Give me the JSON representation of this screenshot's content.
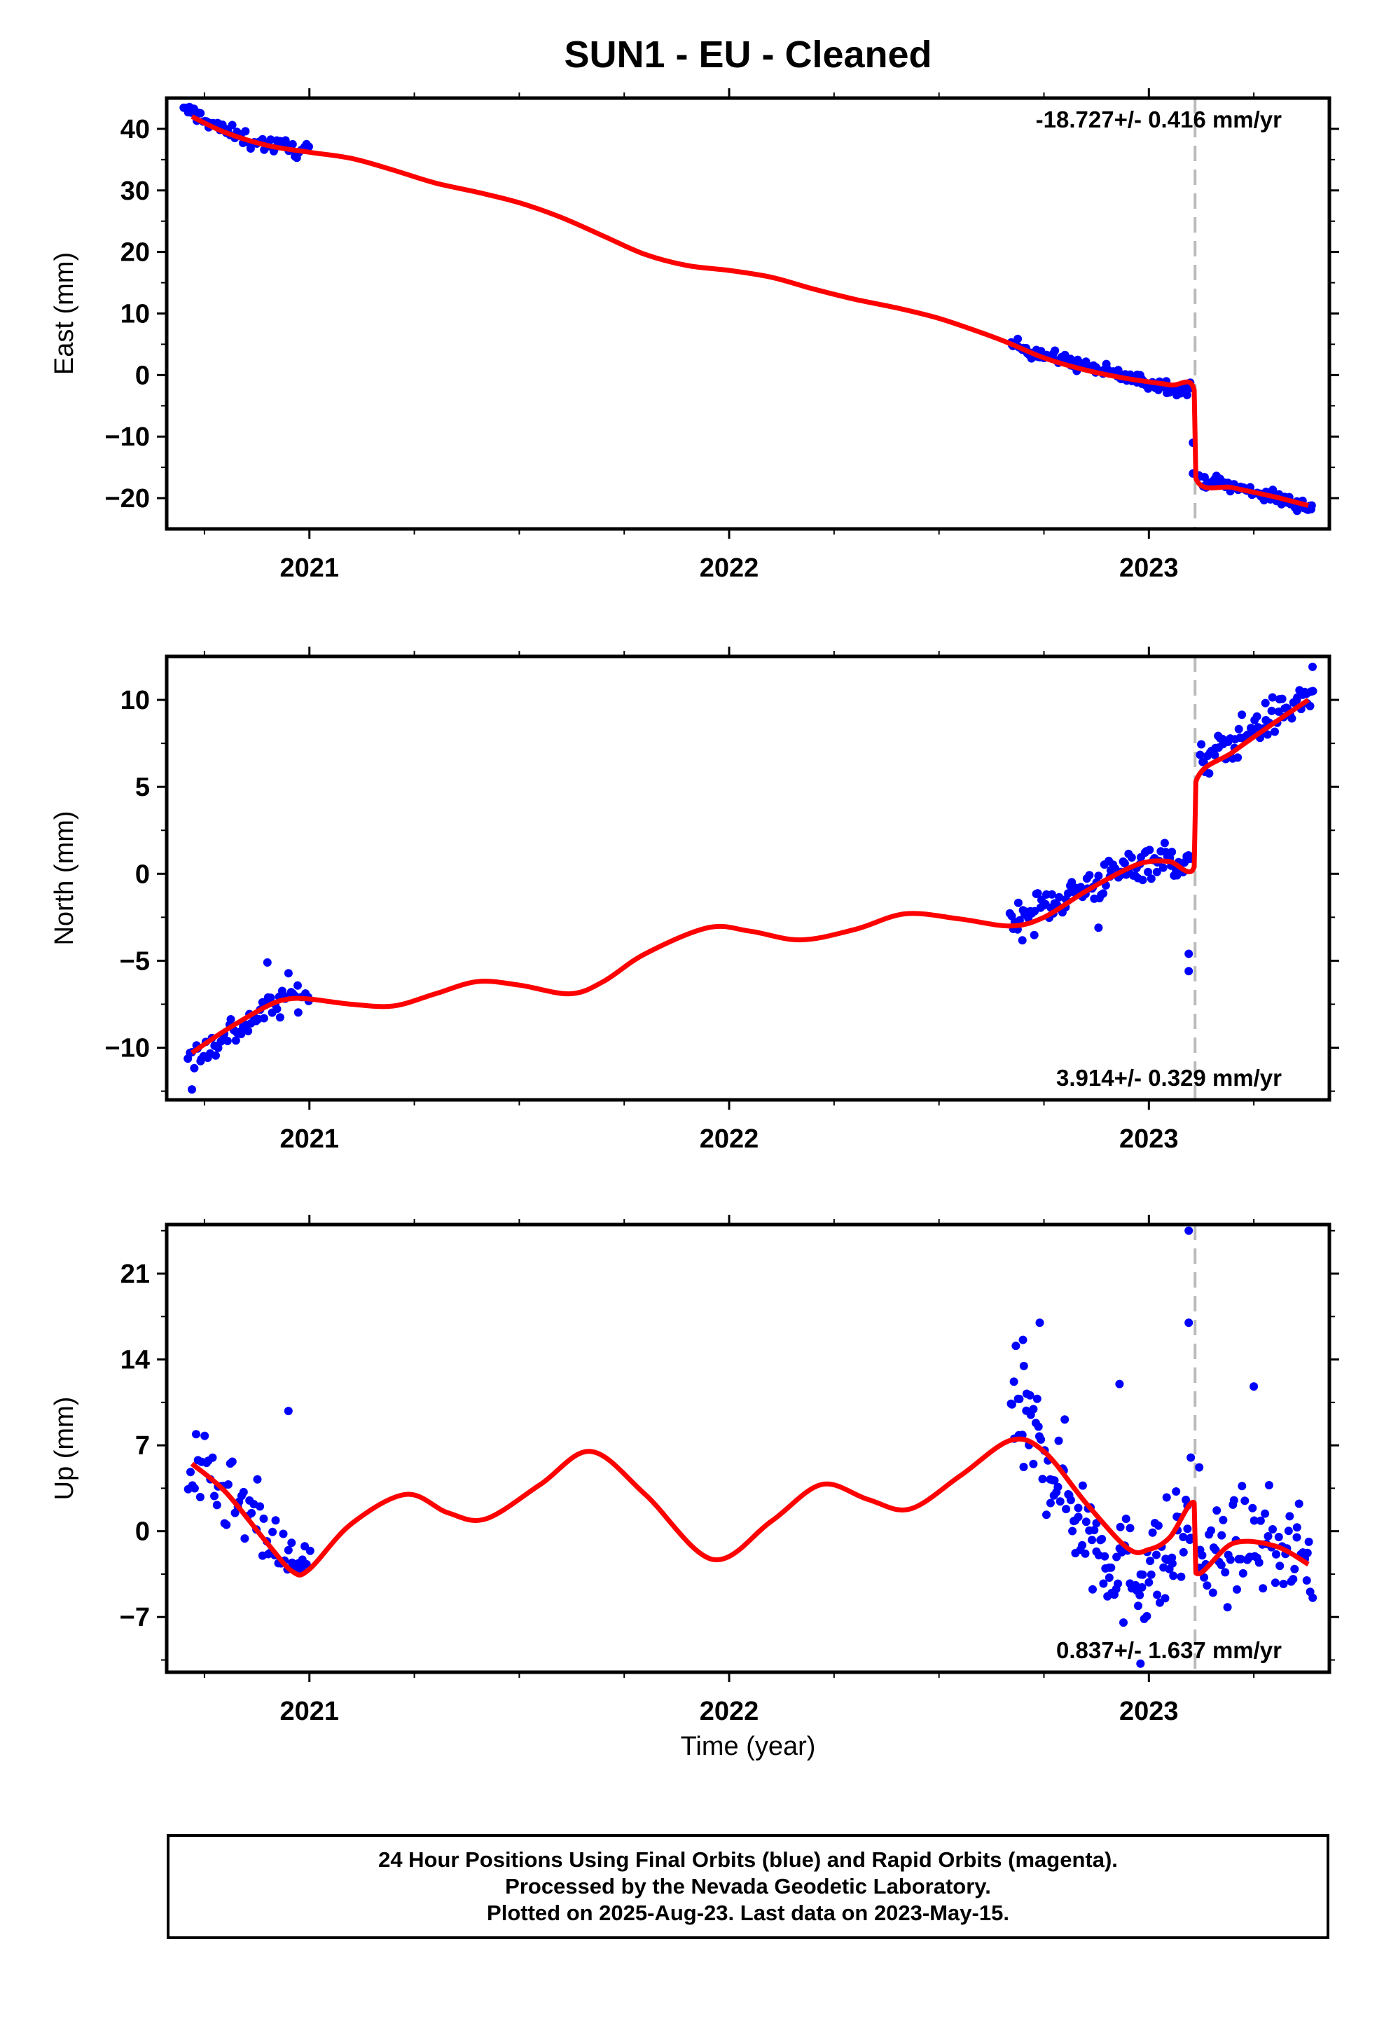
{
  "figure": {
    "title": "SUN1  - EU - Cleaned",
    "x_axis_label": "Time (year)",
    "footer_lines": [
      "24 Hour Positions Using Final Orbits (blue) and Rapid Orbits (magenta).",
      "Processed by the Nevada Geodetic Laboratory.",
      "Plotted on 2025-Aug-23. Last data on 2023-May-15."
    ],
    "colors": {
      "points": "#0000ff",
      "fit": "#ff0000",
      "event_line": "#bbbbbb",
      "axes": "#000000"
    }
  },
  "chart_data": [
    {
      "type": "scatter",
      "name": "east",
      "ylabel": "East (mm)",
      "rate_label": "-18.727+/- 0.416 mm/yr",
      "xlim": [
        2020.66,
        2023.43
      ],
      "ylim": [
        -25,
        45
      ],
      "xticks": [
        2021,
        2022,
        2023
      ],
      "yticks": [
        40,
        30,
        20,
        10,
        0,
        -10,
        -20
      ],
      "ytick_labels": [
        "40",
        "30",
        "20",
        "10",
        "0",
        "−10",
        "−20"
      ],
      "event_x": 2023.11,
      "fit": {
        "x": [
          2020.72,
          2020.8,
          2020.9,
          2021.0,
          2021.1,
          2021.2,
          2021.3,
          2021.4,
          2021.5,
          2021.6,
          2021.7,
          2021.8,
          2021.9,
          2022.0,
          2022.1,
          2022.2,
          2022.3,
          2022.4,
          2022.5,
          2022.6,
          2022.67,
          2022.75,
          2022.85,
          2022.95,
          2023.05,
          2023.108,
          2023.112,
          2023.2,
          2023.3,
          2023.38
        ],
        "y": [
          42.0,
          39.4,
          37.3,
          36.2,
          35.2,
          33.3,
          31.2,
          29.7,
          28.0,
          25.6,
          22.6,
          19.6,
          17.8,
          17.0,
          15.9,
          14.0,
          12.3,
          10.9,
          9.2,
          6.9,
          5.1,
          2.8,
          0.8,
          -0.6,
          -1.6,
          -2.4,
          -16.8,
          -18.3,
          -19.8,
          -21.2
        ]
      },
      "segments": [
        {
          "x_start": 2020.7,
          "x_end": 2021.0,
          "center": [
            [
              2020.72,
              42.8
            ],
            [
              2020.8,
              39.6
            ],
            [
              2020.9,
              37.4
            ],
            [
              2021.0,
              36.6
            ]
          ],
          "spread": 1.0,
          "count": 60
        },
        {
          "x_start": 2022.67,
          "x_end": 2023.1,
          "center": [
            [
              2022.67,
              5.0
            ],
            [
              2022.8,
              2.3
            ],
            [
              2022.9,
              0.5
            ],
            [
              2023.0,
              -1.3
            ],
            [
              2023.1,
              -2.4
            ]
          ],
          "spread": 0.9,
          "count": 110
        },
        {
          "x_start": 2023.12,
          "x_end": 2023.39,
          "center": [
            [
              2023.12,
              -16.8
            ],
            [
              2023.25,
              -19.0
            ],
            [
              2023.39,
              -21.5
            ]
          ],
          "spread": 0.9,
          "count": 70
        }
      ],
      "extra_points": [
        [
          2023.105,
          -11.0
        ],
        [
          2023.105,
          -16.0
        ],
        [
          2020.86,
          36.8
        ],
        [
          2020.97,
          35.3
        ]
      ]
    },
    {
      "type": "scatter",
      "name": "north",
      "ylabel": "North (mm)",
      "rate_label": "3.914+/- 0.329 mm/yr",
      "xlim": [
        2020.66,
        2023.43
      ],
      "ylim": [
        -13,
        12.5
      ],
      "xticks": [
        2021,
        2022,
        2023
      ],
      "yticks": [
        10,
        5,
        0,
        -5,
        -10
      ],
      "ytick_labels": [
        "10",
        "5",
        "0",
        "−5",
        "−10"
      ],
      "event_x": 2023.11,
      "fit": {
        "x": [
          2020.72,
          2020.8,
          2020.9,
          2020.95,
          2021.0,
          2021.1,
          2021.2,
          2021.3,
          2021.4,
          2021.5,
          2021.62,
          2021.7,
          2021.8,
          2021.95,
          2022.05,
          2022.17,
          2022.3,
          2022.42,
          2022.55,
          2022.67,
          2022.75,
          2022.85,
          2022.95,
          2023.0,
          2023.05,
          2023.108,
          2023.112,
          2023.2,
          2023.3,
          2023.38
        ],
        "y": [
          -10.3,
          -9.0,
          -7.6,
          -7.2,
          -7.2,
          -7.5,
          -7.6,
          -6.9,
          -6.2,
          -6.4,
          -6.9,
          -6.2,
          -4.6,
          -3.1,
          -3.3,
          -3.8,
          -3.2,
          -2.3,
          -2.6,
          -3.0,
          -2.5,
          -1.0,
          0.3,
          0.7,
          0.7,
          0.4,
          5.3,
          7.0,
          8.7,
          10.0
        ]
      },
      "segments": [
        {
          "x_start": 2020.71,
          "x_end": 2021.0,
          "center": [
            [
              2020.72,
              -10.6
            ],
            [
              2020.85,
              -8.6
            ],
            [
              2020.95,
              -7.0
            ],
            [
              2021.0,
              -6.9
            ]
          ],
          "spread": 0.8,
          "count": 60
        },
        {
          "x_start": 2022.67,
          "x_end": 2023.1,
          "center": [
            [
              2022.67,
              -2.8
            ],
            [
              2022.8,
              -1.3
            ],
            [
              2022.9,
              -0.3
            ],
            [
              2023.0,
              0.9
            ],
            [
              2023.1,
              0.6
            ]
          ],
          "spread": 0.9,
          "count": 110
        },
        {
          "x_start": 2023.12,
          "x_end": 2023.39,
          "center": [
            [
              2023.12,
              6.3
            ],
            [
              2023.25,
              8.4
            ],
            [
              2023.39,
              10.3
            ]
          ],
          "spread": 0.9,
          "count": 70
        }
      ],
      "extra_points": [
        [
          2023.095,
          -4.6
        ],
        [
          2023.095,
          -5.6
        ],
        [
          2020.72,
          -12.4
        ],
        [
          2023.39,
          11.9
        ],
        [
          2022.88,
          -3.1
        ],
        [
          2020.9,
          -5.1
        ]
      ]
    },
    {
      "type": "scatter",
      "name": "up",
      "ylabel": "Up (mm)",
      "rate_label": "0.837+/- 1.637 mm/yr",
      "xlim": [
        2020.66,
        2023.43
      ],
      "ylim": [
        -11.5,
        25
      ],
      "xticks": [
        2021,
        2022,
        2023
      ],
      "yticks": [
        21,
        14,
        7,
        0,
        -7
      ],
      "ytick_labels": [
        "21",
        "14",
        "7",
        "0",
        "−7"
      ],
      "event_x": 2023.11,
      "fit": {
        "x": [
          2020.72,
          2020.8,
          2020.9,
          2020.96,
          2021.0,
          2021.1,
          2021.23,
          2021.33,
          2021.42,
          2021.55,
          2021.67,
          2021.8,
          2021.96,
          2022.1,
          2022.22,
          2022.33,
          2022.43,
          2022.55,
          2022.67,
          2022.75,
          2022.85,
          2022.95,
          2023.0,
          2023.05,
          2023.108,
          2023.112,
          2023.2,
          2023.3,
          2023.38
        ],
        "y": [
          5.5,
          3.2,
          -1.0,
          -3.3,
          -3.1,
          0.6,
          3.0,
          1.5,
          1.0,
          3.8,
          6.5,
          3.0,
          -2.3,
          0.8,
          3.8,
          2.6,
          1.8,
          4.5,
          7.4,
          6.5,
          2.3,
          -1.4,
          -1.5,
          -0.5,
          2.3,
          -3.4,
          -1.0,
          -1.2,
          -2.7
        ]
      },
      "segments": [
        {
          "x_start": 2020.71,
          "x_end": 2021.0,
          "center": [
            [
              2020.72,
              4.9
            ],
            [
              2020.85,
              1.5
            ],
            [
              2020.95,
              -2.8
            ],
            [
              2021.0,
              -2.0
            ]
          ],
          "spread": 2.6,
          "count": 60
        },
        {
          "x_start": 2022.67,
          "x_end": 2023.1,
          "center": [
            [
              2022.67,
              10.0
            ],
            [
              2022.75,
              6.5
            ],
            [
              2022.85,
              0.2
            ],
            [
              2022.95,
              -3.6
            ],
            [
              2023.05,
              -2.2
            ],
            [
              2023.1,
              1.2
            ]
          ],
          "spread": 3.8,
          "count": 130
        },
        {
          "x_start": 2023.12,
          "x_end": 2023.39,
          "center": [
            [
              2023.12,
              -3.0
            ],
            [
              2023.25,
              -0.5
            ],
            [
              2023.39,
              -2.5
            ]
          ],
          "spread": 3.2,
          "count": 70
        }
      ],
      "extra_points": [
        [
          2023.095,
          24.5
        ],
        [
          2023.095,
          17.0
        ],
        [
          2022.74,
          17.0
        ],
        [
          2022.7,
          15.6
        ],
        [
          2020.95,
          9.8
        ],
        [
          2022.93,
          12.0
        ],
        [
          2023.25,
          11.8
        ],
        [
          2022.98,
          -10.8
        ],
        [
          2023.1,
          6.0
        ],
        [
          2023.12,
          5.2
        ]
      ]
    }
  ]
}
